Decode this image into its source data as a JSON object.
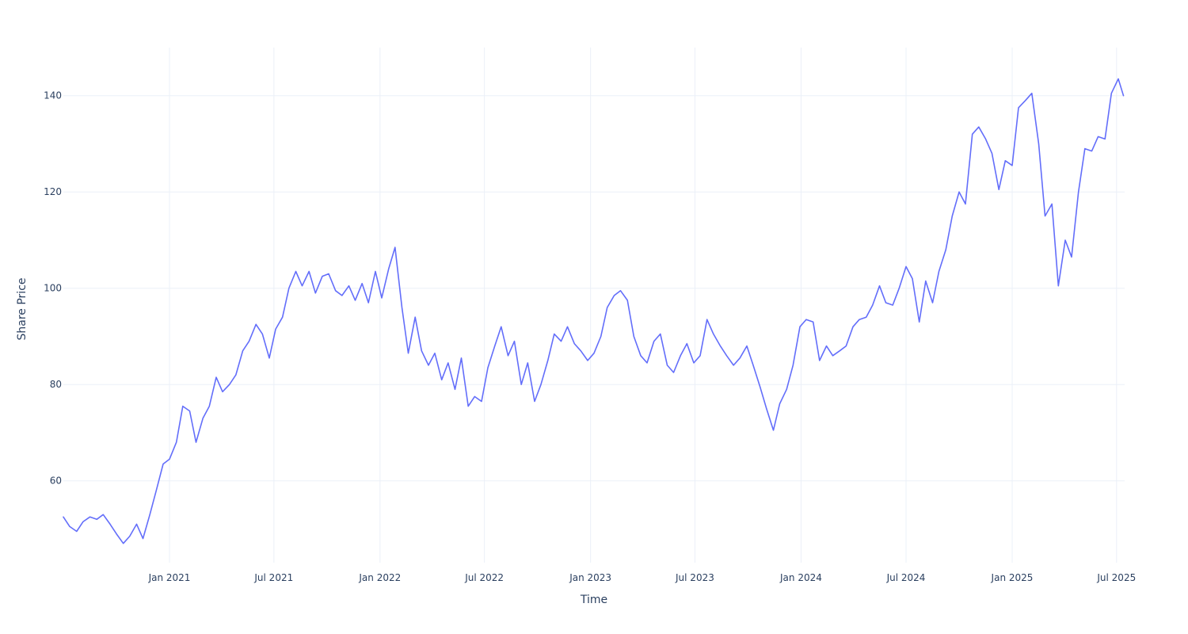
{
  "chart_data": {
    "type": "line",
    "title": "",
    "xlabel": "Time",
    "ylabel": "Share Price",
    "xlim": [
      "2020-07-01",
      "2025-07-15"
    ],
    "ylim": [
      43,
      150
    ],
    "grid": true,
    "legend": "none",
    "colors": {
      "line": "#636efa",
      "grid": "#ebf0f8",
      "text": "#2a3f5f"
    },
    "x_ticks": [
      {
        "date": "2021-01-01",
        "label": "Jan 2021"
      },
      {
        "date": "2021-07-01",
        "label": "Jul 2021"
      },
      {
        "date": "2022-01-01",
        "label": "Jan 2022"
      },
      {
        "date": "2022-07-01",
        "label": "Jul 2022"
      },
      {
        "date": "2023-01-01",
        "label": "Jan 2023"
      },
      {
        "date": "2023-07-01",
        "label": "Jul 2023"
      },
      {
        "date": "2024-01-01",
        "label": "Jan 2024"
      },
      {
        "date": "2024-07-01",
        "label": "Jul 2024"
      },
      {
        "date": "2025-01-01",
        "label": "Jan 2025"
      },
      {
        "date": "2025-07-01",
        "label": "Jul 2025"
      }
    ],
    "y_ticks": [
      {
        "value": 60,
        "label": "60"
      },
      {
        "value": 80,
        "label": "80"
      },
      {
        "value": 100,
        "label": "100"
      },
      {
        "value": 120,
        "label": "120"
      },
      {
        "value": 140,
        "label": "140"
      }
    ],
    "x": [
      "2020-07-01",
      "2020-07-12",
      "2020-07-24",
      "2020-08-04",
      "2020-08-16",
      "2020-08-28",
      "2020-09-08",
      "2020-09-20",
      "2020-10-01",
      "2020-10-13",
      "2020-10-24",
      "2020-11-05",
      "2020-11-16",
      "2020-11-28",
      "2020-12-09",
      "2020-12-21",
      "2021-01-01",
      "2021-01-13",
      "2021-01-24",
      "2021-02-05",
      "2021-02-16",
      "2021-02-28",
      "2021-03-11",
      "2021-03-23",
      "2021-04-03",
      "2021-04-15",
      "2021-04-26",
      "2021-05-08",
      "2021-05-19",
      "2021-05-31",
      "2021-06-11",
      "2021-06-23",
      "2021-07-04",
      "2021-07-16",
      "2021-07-27",
      "2021-08-08",
      "2021-08-19",
      "2021-08-31",
      "2021-09-11",
      "2021-09-23",
      "2021-10-04",
      "2021-10-16",
      "2021-10-27",
      "2021-11-08",
      "2021-11-19",
      "2021-12-01",
      "2021-12-12",
      "2021-12-24",
      "2022-01-04",
      "2022-01-16",
      "2022-01-27",
      "2022-02-08",
      "2022-02-19",
      "2022-03-03",
      "2022-03-14",
      "2022-03-26",
      "2022-04-06",
      "2022-04-18",
      "2022-04-29",
      "2022-05-11",
      "2022-05-22",
      "2022-06-03",
      "2022-06-14",
      "2022-06-26",
      "2022-07-07",
      "2022-07-19",
      "2022-07-30",
      "2022-08-11",
      "2022-08-22",
      "2022-09-03",
      "2022-09-14",
      "2022-09-26",
      "2022-10-07",
      "2022-10-19",
      "2022-10-30",
      "2022-11-11",
      "2022-11-22",
      "2022-12-04",
      "2022-12-15",
      "2022-12-27",
      "2023-01-07",
      "2023-01-19",
      "2023-01-30",
      "2023-02-11",
      "2023-02-22",
      "2023-03-06",
      "2023-03-17",
      "2023-03-29",
      "2023-04-09",
      "2023-04-21",
      "2023-05-02",
      "2023-05-14",
      "2023-05-25",
      "2023-06-06",
      "2023-06-17",
      "2023-06-29",
      "2023-07-10",
      "2023-07-22",
      "2023-08-02",
      "2023-08-14",
      "2023-08-25",
      "2023-09-06",
      "2023-09-17",
      "2023-09-29",
      "2023-10-10",
      "2023-10-22",
      "2023-11-02",
      "2023-11-14",
      "2023-11-25",
      "2023-12-07",
      "2023-12-18",
      "2023-12-30",
      "2024-01-10",
      "2024-01-22",
      "2024-02-02",
      "2024-02-14",
      "2024-02-25",
      "2024-03-08",
      "2024-03-19",
      "2024-03-31",
      "2024-04-11",
      "2024-04-23",
      "2024-05-04",
      "2024-05-16",
      "2024-05-27",
      "2024-06-08",
      "2024-06-19",
      "2024-07-01",
      "2024-07-12",
      "2024-07-24",
      "2024-08-04",
      "2024-08-16",
      "2024-08-27",
      "2024-09-08",
      "2024-09-19",
      "2024-10-01",
      "2024-10-12",
      "2024-10-24",
      "2024-11-04",
      "2024-11-16",
      "2024-11-27",
      "2024-12-09",
      "2024-12-20",
      "2025-01-01",
      "2025-01-12",
      "2025-01-24",
      "2025-02-04",
      "2025-02-16",
      "2025-02-27",
      "2025-03-11",
      "2025-03-22",
      "2025-04-03",
      "2025-04-14",
      "2025-04-26",
      "2025-05-07",
      "2025-05-19",
      "2025-05-30",
      "2025-06-11",
      "2025-06-22",
      "2025-07-04",
      "2025-07-13"
    ],
    "y": [
      52.5,
      50.5,
      49.5,
      51.5,
      52.5,
      52.0,
      53.0,
      51.0,
      49.0,
      47.0,
      48.5,
      51.0,
      48.0,
      53.0,
      58.0,
      63.5,
      64.5,
      68.0,
      75.5,
      74.5,
      68.0,
      73.0,
      75.5,
      81.5,
      78.5,
      80.0,
      82.0,
      87.0,
      89.0,
      92.5,
      90.5,
      85.5,
      91.5,
      94.0,
      100.0,
      103.5,
      100.5,
      103.5,
      99.0,
      102.5,
      103.0,
      99.5,
      98.5,
      100.5,
      97.5,
      101.0,
      97.0,
      103.5,
      98.0,
      104.0,
      108.5,
      96.0,
      86.5,
      94.0,
      87.0,
      84.0,
      86.5,
      81.0,
      84.5,
      79.0,
      85.5,
      75.5,
      77.5,
      76.5,
      83.5,
      88.0,
      92.0,
      86.0,
      89.0,
      80.0,
      84.5,
      76.5,
      80.0,
      85.0,
      90.5,
      89.0,
      92.0,
      88.5,
      87.0,
      85.0,
      86.5,
      90.0,
      96.0,
      98.5,
      99.5,
      97.5,
      90.0,
      86.0,
      84.5,
      89.0,
      90.5,
      84.0,
      82.5,
      86.0,
      88.5,
      84.5,
      86.0,
      93.5,
      90.5,
      88.0,
      86.0,
      84.0,
      85.5,
      88.0,
      84.0,
      79.5,
      75.0,
      70.5,
      76.0,
      79.0,
      84.0,
      92.0,
      93.5,
      93.0,
      85.0,
      88.0,
      86.0,
      87.0,
      88.0,
      92.0,
      93.5,
      94.0,
      96.5,
      100.5,
      97.0,
      96.5,
      100.0,
      104.5,
      102.0,
      93.0,
      101.5,
      97.0,
      103.5,
      108.0,
      115.0,
      120.0,
      117.5,
      132.0,
      133.5,
      131.0,
      128.0,
      120.5,
      126.5,
      125.5,
      137.5,
      139.0,
      140.5,
      130.0,
      115.0,
      117.5,
      100.5,
      110.0,
      106.5,
      120.0,
      129.0,
      128.5,
      131.5,
      131.0,
      140.5,
      143.5,
      140.0
    ]
  }
}
